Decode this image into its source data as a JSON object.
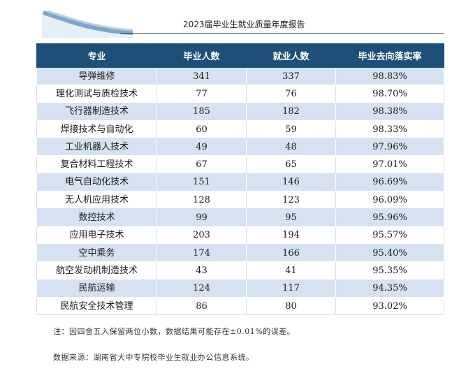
{
  "header": {
    "title": "2023届毕业生就业质量年度报告"
  },
  "table": {
    "columns": [
      "专业",
      "毕业人数",
      "就业人数",
      "毕业去向落实率"
    ],
    "rows": [
      [
        "导弹维修",
        "341",
        "337",
        "98.83%"
      ],
      [
        "理化测试与质检技术",
        "77",
        "76",
        "98.70%"
      ],
      [
        "飞行器制造技术",
        "185",
        "182",
        "98.38%"
      ],
      [
        "焊接技术与自动化",
        "60",
        "59",
        "98.33%"
      ],
      [
        "工业机器人技术",
        "49",
        "48",
        "97.96%"
      ],
      [
        "复合材料工程技术",
        "67",
        "65",
        "97.01%"
      ],
      [
        "电气自动化技术",
        "151",
        "146",
        "96.69%"
      ],
      [
        "无人机应用技术",
        "128",
        "123",
        "96.09%"
      ],
      [
        "数控技术",
        "99",
        "95",
        "95.96%"
      ],
      [
        "应用电子技术",
        "203",
        "194",
        "95.57%"
      ],
      [
        "空中乘务",
        "174",
        "166",
        "95.40%"
      ],
      [
        "航空发动机制造技术",
        "43",
        "41",
        "95.35%"
      ],
      [
        "民航运输",
        "124",
        "117",
        "94.35%"
      ],
      [
        "民航安全技术管理",
        "86",
        "80",
        "93.02%"
      ]
    ]
  },
  "note": "注：因四舍五入保留两位小数，数据结果可能存在±0.01%的误差。",
  "source": "数据来源：湖南省大中专院校毕业生就业办公信息系统。",
  "colors": {
    "header_bg": "#1d4f78",
    "stripe": "#d6e2f1",
    "deco": "#7fa6c8"
  }
}
